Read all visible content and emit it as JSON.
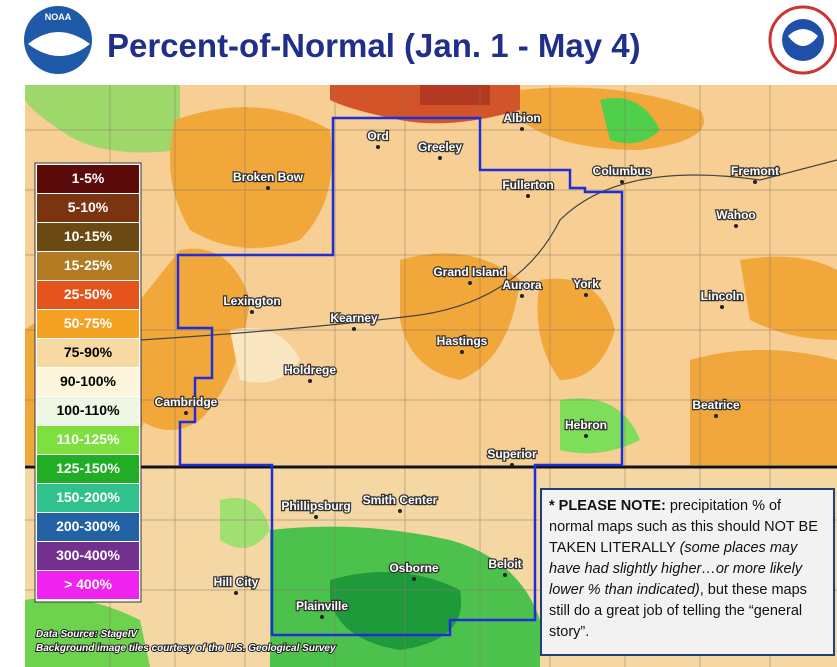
{
  "header": {
    "title": "Percent-of-Normal (Jan. 1 - May 4)",
    "logo": "NOAA"
  },
  "legend": [
    {
      "label": "1-5%",
      "color": "#5c0b0b",
      "text_color": "#ffffff"
    },
    {
      "label": "5-10%",
      "color": "#7a3410",
      "text_color": "#ffffff"
    },
    {
      "label": "10-15%",
      "color": "#6a4a12",
      "text_color": "#ffffff"
    },
    {
      "label": "15-25%",
      "color": "#b27a22",
      "text_color": "#ffffff"
    },
    {
      "label": "25-50%",
      "color": "#e6541e",
      "text_color": "#ffffff"
    },
    {
      "label": "50-75%",
      "color": "#f3a224",
      "text_color": "#ffffff"
    },
    {
      "label": "75-90%",
      "color": "#f9d9a2",
      "text_color": "#000000"
    },
    {
      "label": "90-100%",
      "color": "#fdf6dc",
      "text_color": "#000000"
    },
    {
      "label": "100-110%",
      "color": "#eef7e4",
      "text_color": "#000000"
    },
    {
      "label": "110-125%",
      "color": "#7ee03e",
      "text_color": "#ffffff"
    },
    {
      "label": "125-150%",
      "color": "#1fae24",
      "text_color": "#ffffff"
    },
    {
      "label": "150-200%",
      "color": "#30c28a",
      "text_color": "#ffffff"
    },
    {
      "label": "200-300%",
      "color": "#2262a4",
      "text_color": "#ffffff"
    },
    {
      "label": "300-400%",
      "color": "#74308f",
      "text_color": "#ffffff"
    },
    {
      "label": "> 400%",
      "color": "#f023ee",
      "text_color": "#ffffff"
    }
  ],
  "cities": [
    "Ord",
    "Greeley",
    "Albion",
    "Broken Bow",
    "Fullerton",
    "Columbus",
    "Fremont",
    "Wahoo",
    "Grand Island",
    "Aurora",
    "York",
    "Lexington",
    "Kearney",
    "Lincoln",
    "Hastings",
    "Holdrege",
    "Cambridge",
    "Beatrice",
    "Hebron",
    "Superior",
    "Phillipsburg",
    "Smith Center",
    "Osborne",
    "Beloit",
    "Hill City",
    "Plainville"
  ],
  "note": {
    "lead": "* PLEASE NOTE:",
    "text1": "precipitation % of normal maps such as this should NOT BE TAKEN LITERALLY",
    "italic": "(some places may have had slightly higher…or more likely lower % than indicated)",
    "text2": ", but these maps still do a great job of telling the “general story”."
  },
  "credits": [
    "Data Source: StageIV",
    "Background image tiles courtesy of the U.S. Geological Survey"
  ]
}
